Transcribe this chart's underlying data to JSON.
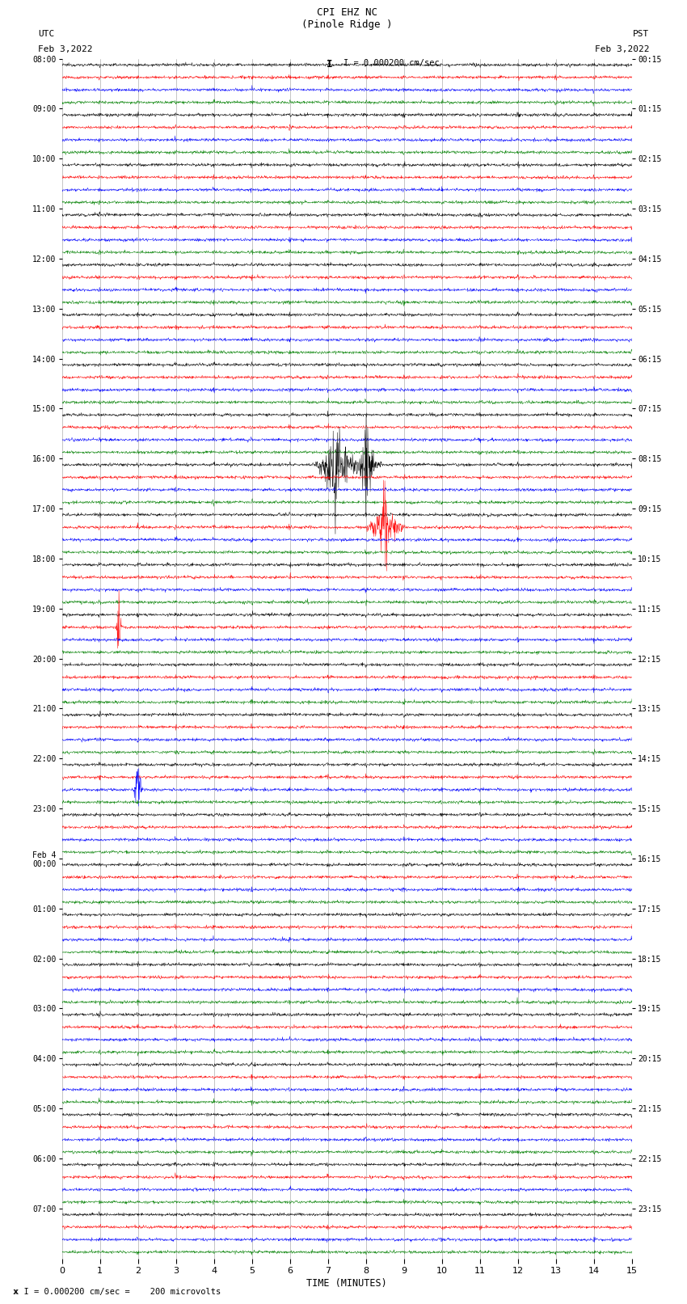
{
  "title_line1": "CPI EHZ NC",
  "title_line2": "(Pinole Ridge )",
  "scale_text": "I = 0.000200 cm/sec",
  "bottom_scale_text": "x I = 0.000200 cm/sec =    200 microvolts",
  "left_header_line1": "UTC",
  "left_header_line2": "Feb 3,2022",
  "right_header_line1": "PST",
  "right_header_line2": "Feb 3,2022",
  "xlabel": "TIME (MINUTES)",
  "xmin": 0,
  "xmax": 15,
  "xticks": [
    0,
    1,
    2,
    3,
    4,
    5,
    6,
    7,
    8,
    9,
    10,
    11,
    12,
    13,
    14,
    15
  ],
  "background_color": "#ffffff",
  "trace_colors": [
    "black",
    "red",
    "blue",
    "green"
  ],
  "utc_hour_labels": [
    "08:00",
    "09:00",
    "10:00",
    "11:00",
    "12:00",
    "13:00",
    "14:00",
    "15:00",
    "16:00",
    "17:00",
    "18:00",
    "19:00",
    "20:00",
    "21:00",
    "22:00",
    "23:00",
    "Feb 4\n00:00",
    "01:00",
    "02:00",
    "03:00",
    "04:00",
    "05:00",
    "06:00",
    "07:00"
  ],
  "pst_hour_labels": [
    "00:15",
    "01:15",
    "02:15",
    "03:15",
    "04:15",
    "05:15",
    "06:15",
    "07:15",
    "08:15",
    "09:15",
    "10:15",
    "11:15",
    "12:15",
    "13:15",
    "14:15",
    "15:15",
    "16:15",
    "17:15",
    "18:15",
    "19:15",
    "20:15",
    "21:15",
    "22:15",
    "23:15"
  ],
  "n_hours": 24,
  "traces_per_hour": 4,
  "noise_amplitude": 0.12,
  "grid_color": "#999999",
  "grid_linewidth": 0.4,
  "trace_linewidth": 0.35,
  "fig_width": 8.5,
  "fig_height": 16.13,
  "dpi": 100
}
